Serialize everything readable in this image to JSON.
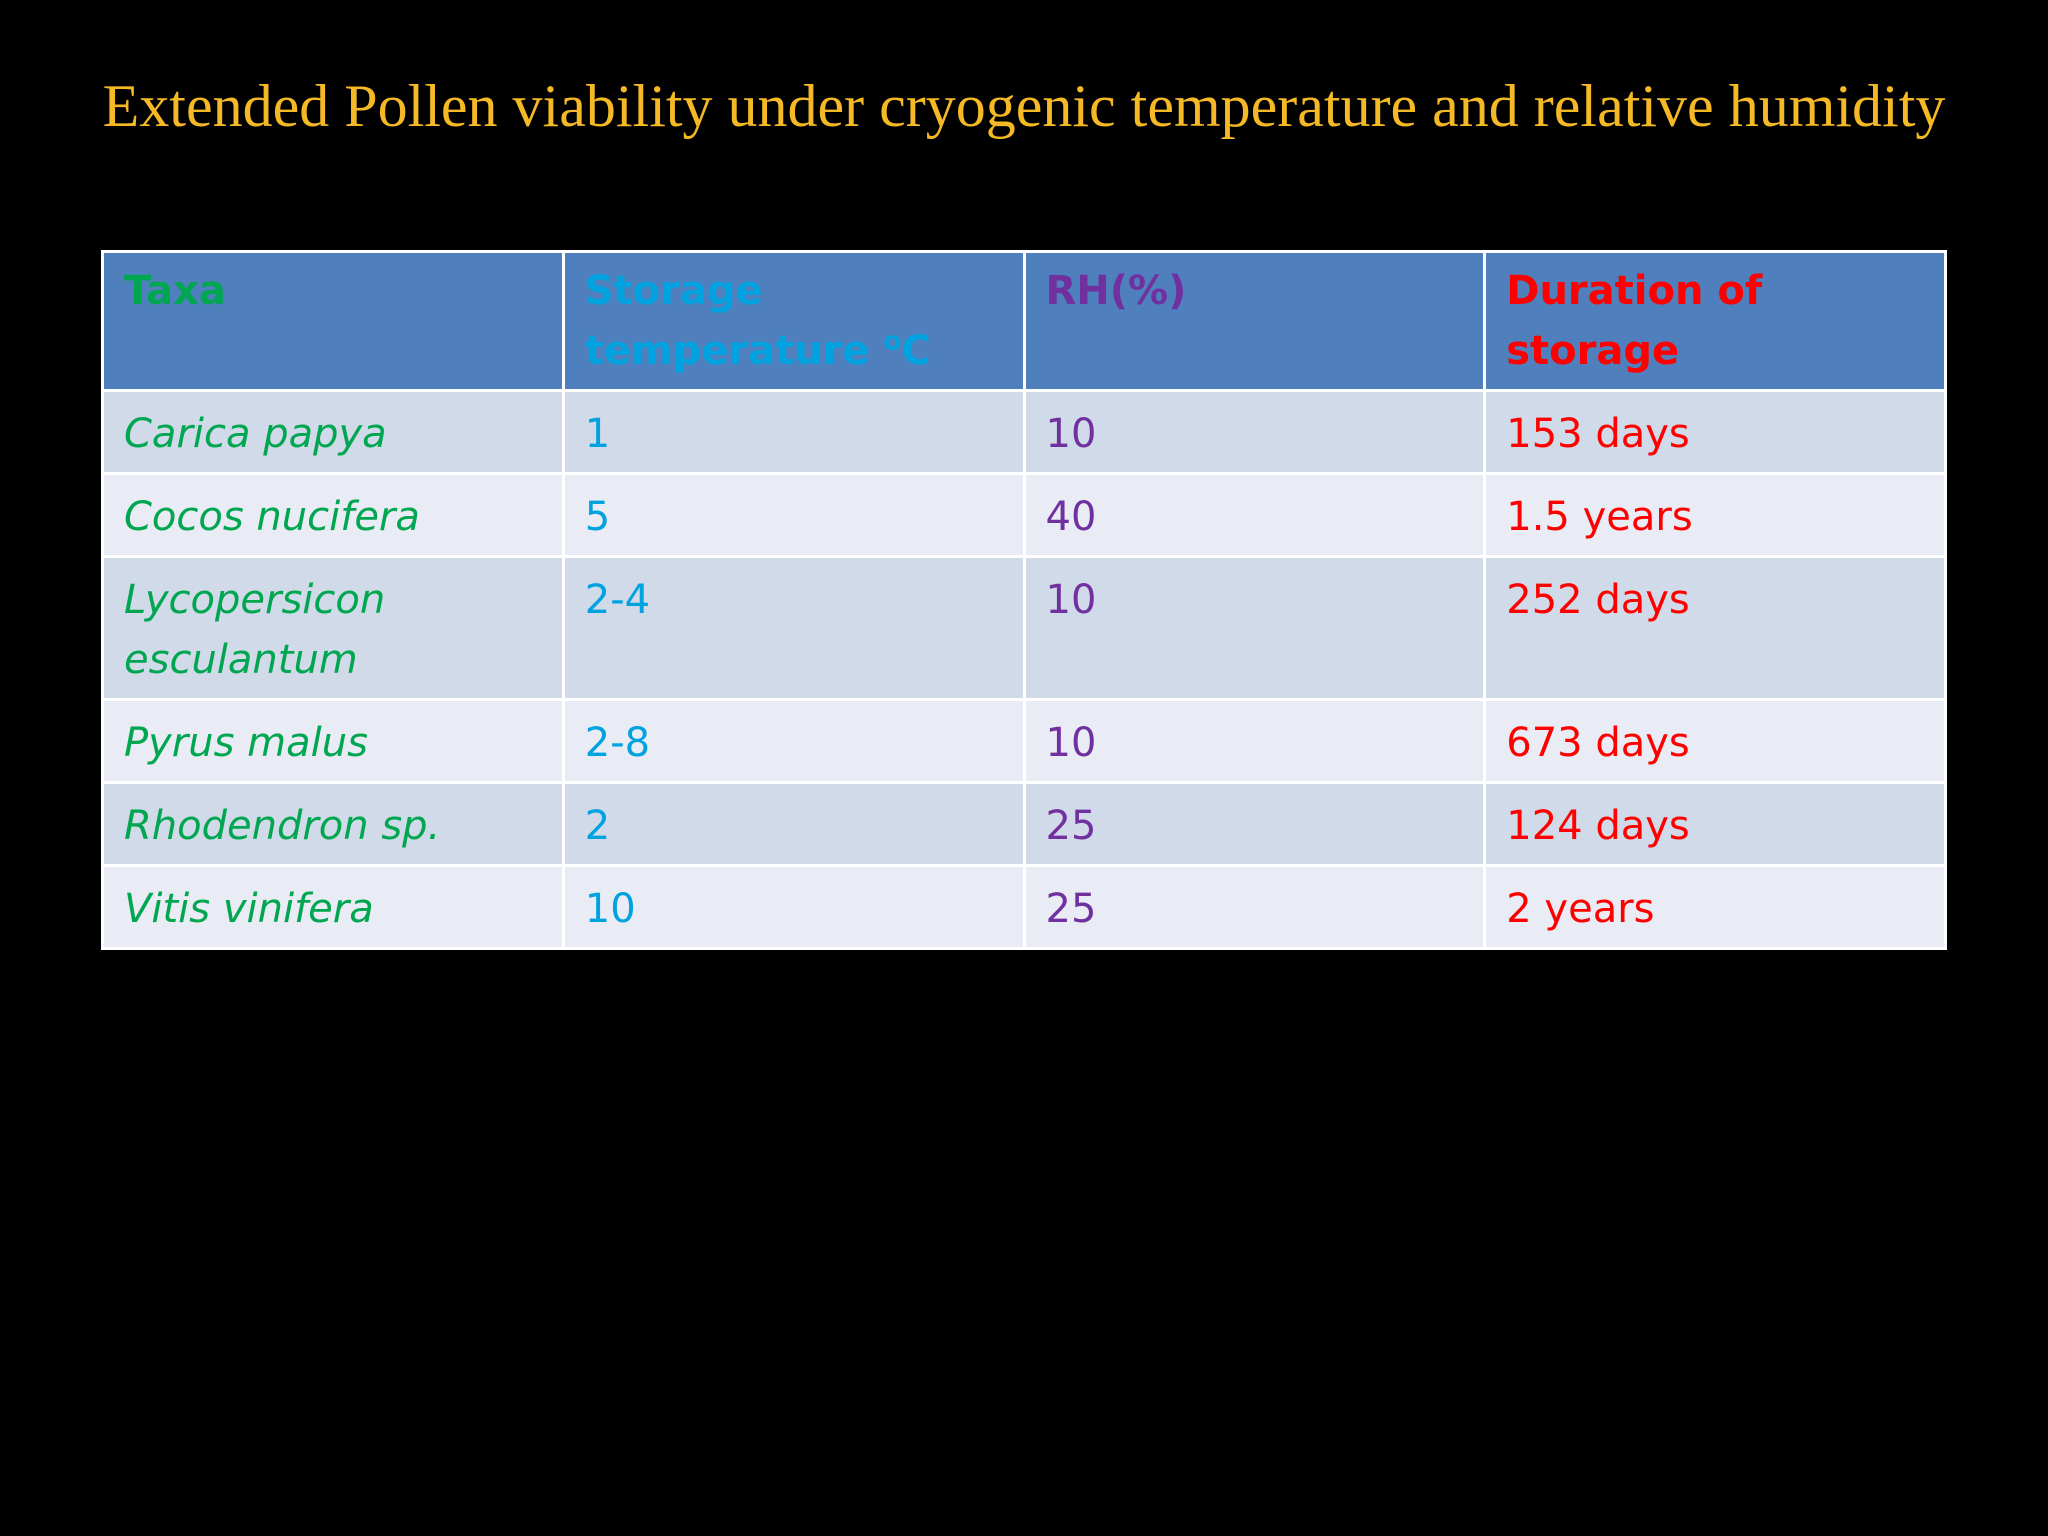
{
  "slide": {
    "title": "Extended Pollen viability under cryogenic temperature and relative humidity"
  },
  "table": {
    "headers": {
      "taxa": "Taxa",
      "storage_temperature": "Storage temperature ",
      "storage_temperature_sup": "o",
      "storage_temperature_unit": "C",
      "rh": "RH(%)",
      "duration": "Duration of storage"
    },
    "rows": [
      {
        "taxa": "Carica papya",
        "temp": "1",
        "rh": "10",
        "duration": "153 days"
      },
      {
        "taxa": "Cocos nucifera",
        "temp": "5",
        "rh": "40",
        "duration": "1.5 years"
      },
      {
        "taxa": "Lycopersicon esculantum",
        "temp": "2-4",
        "rh": "10",
        "duration": "252 days"
      },
      {
        "taxa": "Pyrus malus",
        "temp": "2-8",
        "rh": "10",
        "duration": "673 days"
      },
      {
        "taxa": "Rhodendron sp.",
        "temp": "2",
        "rh": "25",
        "duration": "124 days"
      },
      {
        "taxa": "Vitis vinifera",
        "temp": "10",
        "rh": "25",
        "duration": "2 years"
      }
    ]
  },
  "colors": {
    "background": "#000000",
    "title": "#f4b924",
    "header_fill": "#4f80bd",
    "row_band_dark": "#d0dae8",
    "row_band_light": "#e9ecf4",
    "taxa_text": "#00a650",
    "temperature_text": "#00a2e0",
    "rh_text": "#7030a0",
    "duration_text": "#ff0000"
  }
}
